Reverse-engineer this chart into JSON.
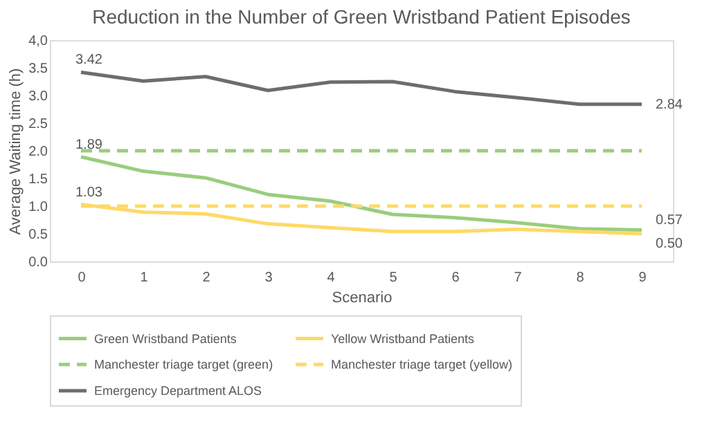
{
  "chart_data": {
    "type": "line",
    "title": "Reduction in the Number of Green Wristband Patient Episodes",
    "xlabel": "Scenario",
    "ylabel": "Average Waiting time (h)",
    "categories": [
      "0",
      "1",
      "2",
      "3",
      "4",
      "5",
      "6",
      "7",
      "8",
      "9"
    ],
    "ylim": [
      0,
      4
    ],
    "yticks": [
      {
        "value": 0,
        "label": "0.0"
      },
      0.5,
      {
        "value": 1,
        "label": "1.0"
      },
      1.5,
      {
        "value": 2,
        "label": "2.0"
      },
      2.5,
      {
        "value": 3,
        "label": "3.0"
      },
      3.5,
      {
        "value": 4,
        "label": "4,0"
      }
    ],
    "grid": false,
    "legend": "bottom",
    "series": [
      {
        "name": "Green Wristband Patients",
        "color": "#9acd7d",
        "line_style": "solid",
        "values": [
          1.89,
          1.63,
          1.51,
          1.21,
          1.09,
          0.85,
          0.79,
          0.7,
          0.59,
          0.57
        ],
        "value_labels": [
          "1.89",
          null,
          null,
          null,
          null,
          null,
          null,
          null,
          null,
          "0.57"
        ]
      },
      {
        "name": "Yellow Wristband Patients",
        "color": "#ffd966",
        "line_style": "solid",
        "values": [
          1.03,
          0.89,
          0.86,
          0.68,
          0.61,
          0.54,
          0.54,
          0.58,
          0.54,
          0.5
        ],
        "value_labels": [
          "1.03",
          null,
          null,
          null,
          null,
          null,
          null,
          null,
          null,
          "0.50"
        ]
      },
      {
        "name": "Manchester triage target (green)",
        "color": "#9acd7d",
        "line_style": "dashed",
        "values": [
          2,
          2,
          2,
          2,
          2,
          2,
          2,
          2,
          2,
          2
        ]
      },
      {
        "name": "Manchester triage target (yellow)",
        "color": "#ffd966",
        "line_style": "dashed",
        "values": [
          1,
          1,
          1,
          1,
          1,
          1,
          1,
          1,
          1,
          1
        ]
      },
      {
        "name": "Emergency Department ALOS",
        "color": "#6d6d6d",
        "line_style": "solid",
        "values": [
          3.42,
          3.26,
          3.34,
          3.09,
          3.24,
          3.25,
          3.07,
          2.96,
          2.84,
          2.84
        ],
        "value_labels": [
          "3.42",
          null,
          null,
          null,
          null,
          null,
          null,
          null,
          null,
          "2.84"
        ]
      }
    ]
  }
}
